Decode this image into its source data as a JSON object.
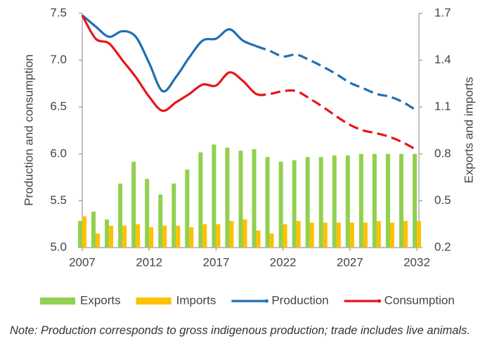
{
  "chart_data": {
    "type": "combo",
    "y_label": "Production and consumption",
    "y2_label": "Exports and imports",
    "x": [
      2007,
      2008,
      2009,
      2010,
      2011,
      2012,
      2013,
      2014,
      2015,
      2016,
      2017,
      2018,
      2019,
      2020,
      2021,
      2022,
      2023,
      2024,
      2025,
      2026,
      2027,
      2028,
      2029,
      2030,
      2031,
      2032
    ],
    "xlim": [
      2007,
      2032
    ],
    "xticks": [
      2007,
      2012,
      2017,
      2022,
      2027,
      2032
    ],
    "ylim": [
      5,
      7.5
    ],
    "yticks": [
      {
        "value": 5,
        "label": "5.0"
      },
      5.5,
      {
        "value": 6,
        "label": "6.0"
      },
      6.5,
      {
        "value": 7,
        "label": "7.0"
      },
      7.5
    ],
    "y2lim": [
      0.2,
      1.7
    ],
    "y2ticks": [
      0.2,
      0.5,
      0.8,
      1.1,
      1.4,
      1.7
    ],
    "grid": false,
    "dashed_from_x": 2020,
    "legend": "bottom",
    "series": [
      {
        "name": "Exports",
        "type": "bar",
        "axis": "y2",
        "color": "#92d050",
        "values": [
          0.37,
          0.43,
          0.38,
          0.61,
          0.75,
          0.64,
          0.54,
          0.61,
          0.7,
          0.81,
          0.86,
          0.84,
          0.82,
          0.83,
          0.78,
          0.75,
          0.76,
          0.78,
          0.78,
          0.79,
          0.79,
          0.8,
          0.8,
          0.8,
          0.8,
          0.8
        ]
      },
      {
        "name": "Imports",
        "type": "bar",
        "axis": "y2",
        "color": "#ffc000",
        "values": [
          0.4,
          0.29,
          0.34,
          0.34,
          0.35,
          0.33,
          0.34,
          0.34,
          0.33,
          0.35,
          0.35,
          0.37,
          0.38,
          0.31,
          0.29,
          0.35,
          0.37,
          0.36,
          0.36,
          0.36,
          0.36,
          0.36,
          0.37,
          0.36,
          0.37,
          0.37
        ]
      },
      {
        "name": "Production",
        "type": "line",
        "color": "#1f6fb4",
        "values": [
          7.48,
          7.36,
          7.25,
          7.31,
          7.25,
          6.97,
          6.67,
          6.82,
          7.03,
          7.21,
          7.23,
          7.33,
          7.21,
          7.15,
          7.1,
          7.04,
          7.06,
          7.0,
          6.93,
          6.85,
          6.76,
          6.7,
          6.64,
          6.61,
          6.55,
          6.46
        ]
      },
      {
        "name": "Consumption",
        "type": "line",
        "color": "#e8141b",
        "values": [
          7.48,
          7.23,
          7.18,
          7.0,
          6.82,
          6.61,
          6.46,
          6.55,
          6.64,
          6.74,
          6.73,
          6.87,
          6.78,
          6.64,
          6.64,
          6.67,
          6.67,
          6.59,
          6.5,
          6.4,
          6.31,
          6.25,
          6.22,
          6.18,
          6.12,
          6.04
        ]
      }
    ],
    "note": "Note: Production corresponds to gross indigenous production; trade includes live animals."
  }
}
